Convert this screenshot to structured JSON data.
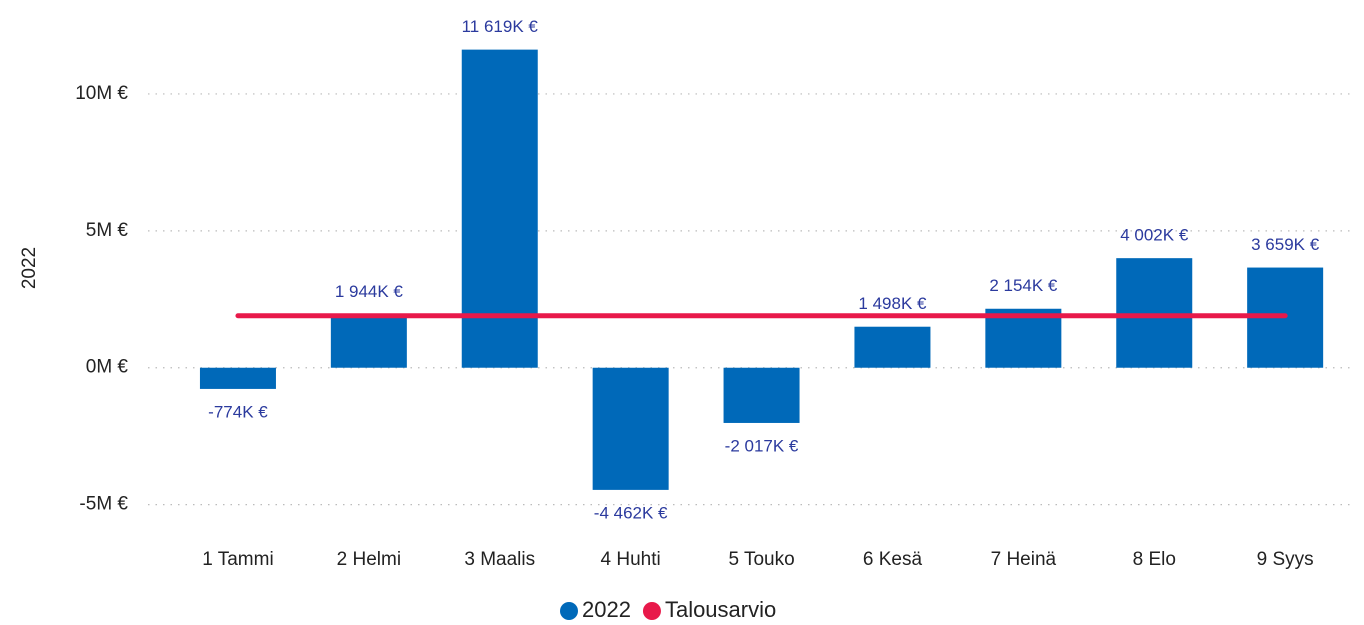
{
  "chart_data": {
    "type": "bar",
    "y_label": "2022",
    "categories": [
      "1 Tammi",
      "2 Helmi",
      "3 Maalis",
      "4 Huhti",
      "5 Touko",
      "6 Kesä",
      "7 Heinä",
      "8 Elo",
      "9 Syys"
    ],
    "series": [
      {
        "name": "2022",
        "color": "#0069b9",
        "type": "bar",
        "values": [
          -774000,
          1944000,
          11619000,
          -4462000,
          -2017000,
          1498000,
          2154000,
          4002000,
          3659000
        ],
        "value_labels": [
          "-774K €",
          "1 944K €",
          "11 619K €",
          "-4 462K €",
          "-2 017K €",
          "1 498K €",
          "2 154K €",
          "4 002K €",
          "3 659K €"
        ]
      },
      {
        "name": "Talousarvio",
        "color": "#e8194a",
        "type": "line",
        "values": [
          1900000,
          1900000,
          1900000,
          1900000,
          1900000,
          1900000,
          1900000,
          1900000,
          1900000
        ]
      }
    ],
    "ylim": [
      -6000000,
      12500000
    ],
    "yticks": [
      {
        "value": -5000000,
        "label": "-5M €"
      },
      {
        "value": 0,
        "label": "0M €"
      },
      {
        "value": 5000000,
        "label": "5M €"
      },
      {
        "value": 10000000,
        "label": "10M €"
      }
    ],
    "grid": true,
    "legend": "bottom"
  }
}
